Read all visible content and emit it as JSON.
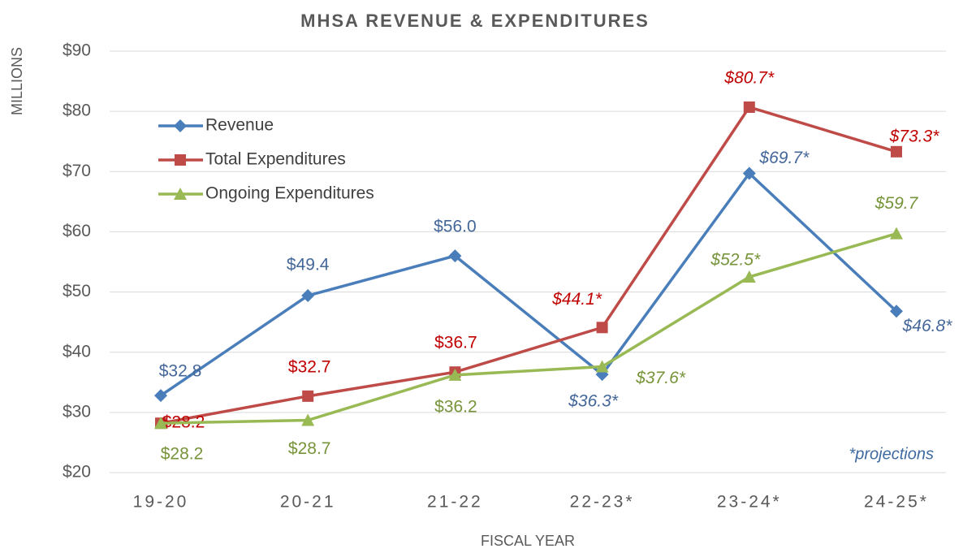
{
  "chart_data": {
    "type": "line",
    "title": "MHSA REVENUE & EXPENDITURES",
    "y_label": "MILLIONS",
    "x_label": "FISCAL YEAR",
    "annotation": "*projections",
    "categories": [
      "19-20",
      "20-21",
      "21-22",
      "22-23*",
      "23-24*",
      "24-25*"
    ],
    "series": [
      {
        "name": "Revenue",
        "color": "#4a7ebb",
        "marker": "diamond",
        "values": [
          32.8,
          49.4,
          56.0,
          36.3,
          69.7,
          46.8
        ],
        "value_labels": [
          "$32.8",
          "$49.4",
          "$56.0",
          "$36.3*",
          "$69.7*",
          "$46.8*"
        ]
      },
      {
        "name": "Total Expenditures",
        "color": "#be4b48",
        "marker": "square",
        "values": [
          28.2,
          32.7,
          36.7,
          44.1,
          80.7,
          73.3
        ],
        "value_labels": [
          "$28.2",
          "$32.7",
          "$36.7",
          "$44.1*",
          "$80.7*",
          "$73.3*"
        ]
      },
      {
        "name": "Ongoing Expenditures",
        "color": "#98b954",
        "marker": "triangle",
        "values": [
          28.2,
          28.7,
          36.2,
          37.6,
          52.5,
          59.7
        ],
        "value_labels": [
          "$28.2",
          "$28.7",
          "$36.2",
          "$37.6*",
          "$52.5*",
          "$59.7"
        ]
      }
    ],
    "ylim": [
      20,
      90
    ],
    "yticks": [
      {
        "value": 20,
        "label": "$20"
      },
      {
        "value": 30,
        "label": "$30"
      },
      {
        "value": 40,
        "label": "$40"
      },
      {
        "value": 50,
        "label": "$50"
      },
      {
        "value": 60,
        "label": "$60"
      },
      {
        "value": 70,
        "label": "$70"
      },
      {
        "value": 80,
        "label": "$80"
      },
      {
        "value": 90,
        "label": "$90"
      }
    ],
    "grid": true,
    "legend": "upper left"
  }
}
